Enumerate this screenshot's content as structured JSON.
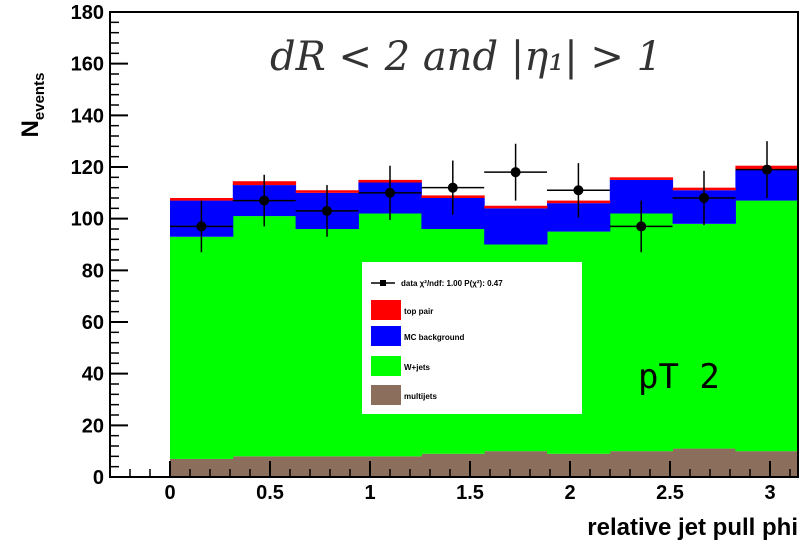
{
  "chart_data": {
    "type": "bar",
    "title": "",
    "xlabel": "relative jet pull phi",
    "ylabel": "N_events",
    "xlim": [
      -0.3,
      3.14
    ],
    "ylim": [
      0,
      180
    ],
    "x_edges": [
      0,
      0.314,
      0.628,
      0.942,
      1.257,
      1.571,
      1.885,
      2.199,
      2.513,
      2.827,
      3.142
    ],
    "x_ticks": [
      {
        "value": 0,
        "label": "0"
      },
      {
        "value": 0.5,
        "label": "0.5"
      },
      {
        "value": 1,
        "label": "1"
      },
      {
        "value": 1.5,
        "label": "1.5"
      },
      {
        "value": 2,
        "label": "2"
      },
      {
        "value": 2.5,
        "label": "2.5"
      },
      {
        "value": 3,
        "label": "3"
      }
    ],
    "y_ticks": [
      {
        "value": 0,
        "label": "0"
      },
      {
        "value": 20,
        "label": "20"
      },
      {
        "value": 40,
        "label": "40"
      },
      {
        "value": 60,
        "label": "60"
      },
      {
        "value": 80,
        "label": "80"
      },
      {
        "value": 100,
        "label": "100"
      },
      {
        "value": 120,
        "label": "120"
      },
      {
        "value": 140,
        "label": "140"
      },
      {
        "value": 160,
        "label": "160"
      },
      {
        "value": 180,
        "label": "180"
      }
    ],
    "series": [
      {
        "name": "multijets",
        "color": "#8c6e5d",
        "values": [
          7,
          8,
          8,
          8,
          9,
          10,
          9,
          10,
          11,
          10
        ]
      },
      {
        "name": "W+jets",
        "color": "#00ff00",
        "values": [
          86,
          93,
          88,
          94,
          87,
          80,
          86,
          92,
          87,
          97
        ]
      },
      {
        "name": "MC background",
        "color": "#0000ff",
        "values": [
          14,
          12,
          14,
          12,
          12,
          14,
          11,
          13,
          13,
          12
        ]
      },
      {
        "name": "top pair",
        "color": "#ff0000",
        "values": [
          1,
          1.5,
          1,
          1,
          1,
          1,
          1,
          1,
          1,
          1.5
        ]
      }
    ],
    "data_points": {
      "name": "data",
      "x": [
        0.157,
        0.471,
        0.785,
        1.1,
        1.414,
        1.728,
        2.042,
        2.356,
        2.67,
        2.985
      ],
      "y": [
        97,
        107,
        103,
        110,
        112,
        118,
        111,
        97,
        108,
        119
      ],
      "yerr": [
        10,
        10,
        10,
        10.5,
        10.5,
        11,
        10.5,
        10,
        10.5,
        11
      ],
      "xerr": 0.157
    },
    "legend": {
      "placement": "center",
      "data_label": "data χ²/ndf: 1.00 P(χ²): 0.47",
      "entries": [
        "top pair",
        "MC background",
        "W+jets",
        "multijets"
      ]
    },
    "annotations": {
      "formula": "dR < 2 and |η₁| > 1",
      "tag": "pT 2"
    }
  }
}
